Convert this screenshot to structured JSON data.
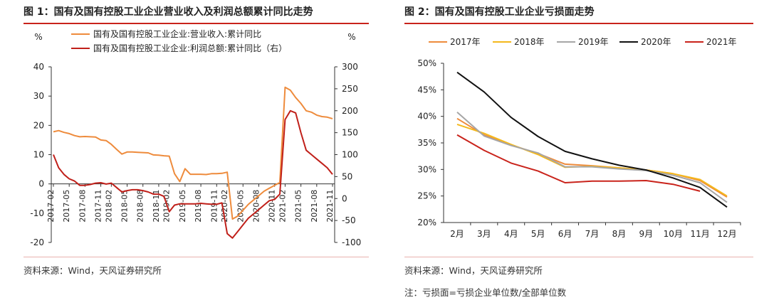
{
  "fig1": {
    "title": "图 1：国有及国有控股工业企业营业收入及利润总额累计同比走势",
    "unit_left": "%",
    "unit_right": "%",
    "source": "资料来源：Wind，天风证券研究所",
    "accent_color": "#c9231b",
    "chart_data": {
      "type": "line",
      "x": [
        "2017-02",
        "2017-03",
        "2017-04",
        "2017-05",
        "2017-06",
        "2017-07",
        "2017-08",
        "2017-09",
        "2017-10",
        "2017-11",
        "2017-12",
        "2018-02",
        "2018-03",
        "2018-04",
        "2018-05",
        "2018-06",
        "2018-07",
        "2018-08",
        "2018-09",
        "2018-10",
        "2018-11",
        "2018-12",
        "2019-02",
        "2019-03",
        "2019-04",
        "2019-05",
        "2019-06",
        "2019-07",
        "2019-08",
        "2019-09",
        "2019-10",
        "2019-11",
        "2019-12",
        "2020-02",
        "2020-03",
        "2020-04",
        "2020-05",
        "2020-06",
        "2020-07",
        "2020-08",
        "2020-09",
        "2020-10",
        "2020-11",
        "2020-12",
        "2021-02",
        "2021-03",
        "2021-04",
        "2021-05",
        "2021-06",
        "2021-07",
        "2021-08",
        "2021-09",
        "2021-10",
        "2021-11"
      ],
      "xticks": [
        "2017-02",
        "2017-05",
        "2017-08",
        "2017-11",
        "2018-02",
        "2018-05",
        "2018-08",
        "2018-11",
        "2019-02",
        "2019-05",
        "2019-08",
        "2019-11",
        "2020-02",
        "2020-05",
        "2020-08",
        "2020-11",
        "2021-02",
        "2021-05",
        "2021-08",
        "2021-11"
      ],
      "series": [
        {
          "name": "国有及国有控股工业企业:营业收入:累计同比",
          "axis": "left",
          "color": "#ee8b3c",
          "values": [
            17.8,
            18.2,
            17.6,
            17.2,
            16.5,
            16.1,
            16.2,
            16.1,
            16.0,
            15.0,
            14.8,
            13.5,
            11.8,
            10.2,
            10.9,
            10.9,
            10.8,
            10.7,
            10.6,
            9.9,
            9.8,
            9.6,
            9.5,
            3.5,
            0.8,
            5.2,
            3.3,
            3.3,
            3.3,
            3.2,
            3.5,
            3.5,
            3.6,
            4.0,
            -12.0,
            -11.0,
            -9.0,
            -7.0,
            -5.5,
            -4.0,
            -2.5,
            -1.5,
            -0.5,
            0.5,
            33.0,
            32.0,
            29.5,
            27.5,
            25.0,
            24.5,
            23.5,
            23.0,
            22.8,
            22.3
          ]
        },
        {
          "name": "国有及国有控股工业企业:利润总额:累计同比（右）",
          "axis": "right",
          "color": "#c0201a",
          "values": [
            100,
            70,
            55,
            45,
            40,
            30,
            30,
            32,
            35,
            36,
            33,
            35,
            25,
            15,
            18,
            20,
            20,
            18,
            15,
            10,
            10,
            5,
            -30,
            -15,
            -12,
            -12,
            -12,
            -12,
            -11,
            -12,
            -13,
            -13,
            -10,
            -80,
            -90,
            -75,
            -60,
            -45,
            -35,
            -25,
            -15,
            -5,
            -2,
            10,
            180,
            200,
            195,
            150,
            110,
            100,
            90,
            80,
            70,
            55
          ]
        }
      ],
      "ylim_left": [
        -20,
        40
      ],
      "yticks_left": [
        -20,
        -10,
        0,
        10,
        20,
        30,
        40
      ],
      "ylim_right": [
        -100,
        300
      ],
      "yticks_right": [
        -100,
        -50,
        0,
        50,
        100,
        150,
        200,
        250,
        300
      ],
      "legend": "top"
    }
  },
  "fig2": {
    "title": "图 2：国有及国有控股工业企业亏损面走势",
    "source": "资料来源：Wind，天风证券研究所",
    "note": "注：亏损面=亏损企业单位数/全部单位数",
    "chart_data": {
      "type": "line",
      "categories": [
        "2月",
        "3月",
        "4月",
        "5月",
        "6月",
        "7月",
        "8月",
        "9月",
        "10月",
        "11月",
        "12月"
      ],
      "series": [
        {
          "name": "2017年",
          "color": "#ee8b3c",
          "values": [
            39.6,
            36.5,
            34.6,
            33.0,
            31.0,
            30.7,
            30.3,
            29.9,
            29.2,
            27.9,
            24.8
          ]
        },
        {
          "name": "2018年",
          "color": "#f4b81c",
          "values": [
            38.5,
            36.8,
            34.7,
            32.8,
            30.4,
            30.6,
            30.3,
            29.9,
            29.2,
            28.1,
            25.0
          ]
        },
        {
          "name": "2019年",
          "color": "#a6a6a6",
          "values": [
            40.8,
            36.3,
            34.5,
            33.1,
            30.5,
            30.5,
            30.1,
            29.8,
            28.9,
            27.5,
            23.8
          ]
        },
        {
          "name": "2020年",
          "color": "#111111",
          "values": [
            48.3,
            44.6,
            39.8,
            36.2,
            33.4,
            32.0,
            30.8,
            29.9,
            28.4,
            26.6,
            22.9
          ]
        },
        {
          "name": "2021年",
          "color": "#c9231b",
          "values": [
            36.5,
            33.6,
            31.2,
            29.7,
            27.5,
            27.8,
            27.8,
            27.9,
            27.2,
            25.9,
            null
          ]
        }
      ],
      "yticks": [
        "20%",
        "25%",
        "30%",
        "35%",
        "40%",
        "45%",
        "50%"
      ],
      "ylim": [
        20,
        50
      ],
      "legend": "top"
    }
  }
}
